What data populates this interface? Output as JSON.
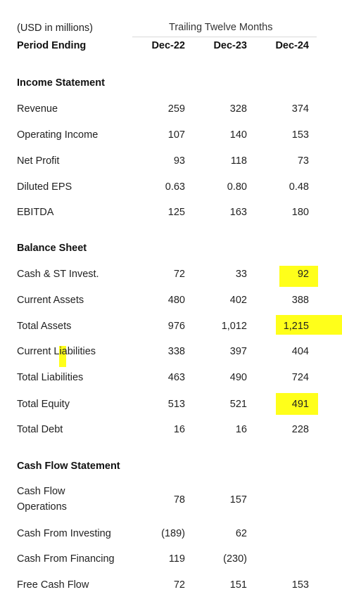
{
  "header": {
    "units": "(USD in millions)",
    "group_title": "Trailing Twelve Months",
    "period_label": "Period Ending",
    "periods": [
      "Dec-22",
      "Dec-23",
      "Dec-24"
    ]
  },
  "income": {
    "title": "Income Statement",
    "rows": [
      {
        "label": "Revenue",
        "values": [
          "259",
          "328",
          "374"
        ]
      },
      {
        "label": "Operating Income",
        "values": [
          "107",
          "140",
          "153"
        ]
      },
      {
        "label": "Net Profit",
        "values": [
          "93",
          "118",
          "73"
        ]
      },
      {
        "label": "Diluted EPS",
        "values": [
          "0.63",
          "0.80",
          "0.48"
        ]
      },
      {
        "label": "EBITDA",
        "values": [
          "125",
          "163",
          "180"
        ]
      }
    ]
  },
  "balance": {
    "title": "Balance Sheet",
    "rows": [
      {
        "label": "Cash & ST Invest.",
        "values": [
          "72",
          "33",
          "92"
        ]
      },
      {
        "label": "Current Assets",
        "values": [
          "480",
          "402",
          "388"
        ]
      },
      {
        "label": "Total Assets",
        "values": [
          "976",
          "1,012",
          "1,215"
        ]
      },
      {
        "label": "Current Liabilities",
        "values": [
          "338",
          "397",
          "404"
        ]
      },
      {
        "label": "Total Liabilities",
        "values": [
          "463",
          "490",
          "724"
        ]
      },
      {
        "label": "Total Equity",
        "values": [
          "513",
          "521",
          "491"
        ]
      },
      {
        "label": "Total Debt",
        "values": [
          "16",
          "16",
          "228"
        ]
      }
    ]
  },
  "cashflow": {
    "title": "Cash Flow Statement",
    "rows": [
      {
        "label_line1": "Cash Flow",
        "label_line2": "Operations",
        "values": [
          "78",
          "157",
          ""
        ]
      },
      {
        "label": "Cash From Investing",
        "values": [
          "(189)",
          "62",
          ""
        ]
      },
      {
        "label": "Cash From Financing",
        "values": [
          "119",
          "(230)",
          ""
        ]
      },
      {
        "label": "Free Cash Flow",
        "values": [
          "72",
          "151",
          "153"
        ]
      }
    ]
  },
  "highlight_color": "#ffff1a"
}
